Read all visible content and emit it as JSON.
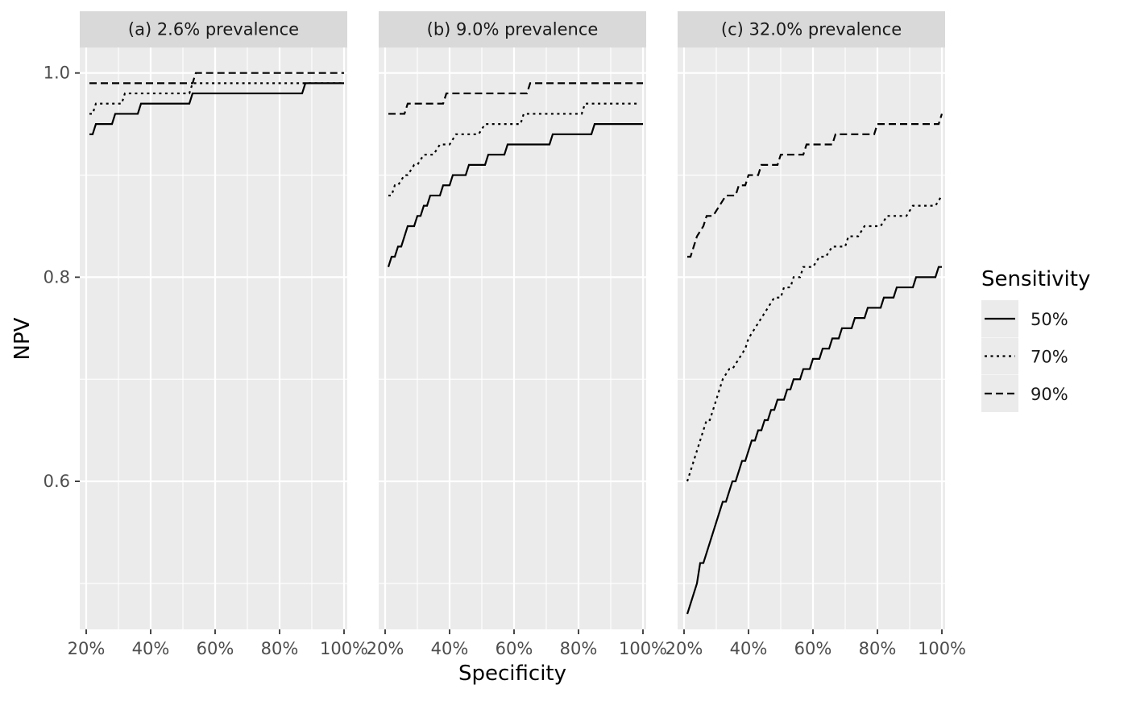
{
  "chart_data": {
    "type": "line",
    "ylabel": "NPV",
    "xlabel": "Specificity",
    "x_ticks": [
      20,
      40,
      60,
      80,
      100
    ],
    "x_tick_labels": [
      "20%",
      "40%",
      "60%",
      "80%",
      "100%"
    ],
    "y_ticks": [
      0.6,
      0.8,
      1.0
    ],
    "y_tick_labels": [
      "0.6",
      "0.8",
      "1.0"
    ],
    "xlim": [
      18,
      101
    ],
    "ylim": [
      0.455,
      1.025
    ],
    "grid": true,
    "legend": {
      "title": "Sensitivity",
      "position": "right",
      "entries": [
        {
          "label": "50%",
          "linetype": "solid"
        },
        {
          "label": "70%",
          "linetype": "dotted"
        },
        {
          "label": "90%",
          "linetype": "dashed"
        }
      ]
    },
    "colors": {
      "panel_background": "#ebebeb",
      "strip_background": "#d9d9d9",
      "gridline": "#ffffff",
      "line": "#000000",
      "tick_text": "#4d4d4d"
    },
    "panels": [
      {
        "strip": "(a) 2.6% prevalence",
        "series": [
          {
            "sensitivity": "50%",
            "linetype": "solid",
            "points": [
              [
                21,
                0.94
              ],
              [
                22,
                0.94
              ],
              [
                23,
                0.95
              ],
              [
                28,
                0.95
              ],
              [
                29,
                0.96
              ],
              [
                36,
                0.96
              ],
              [
                37,
                0.97
              ],
              [
                52,
                0.97
              ],
              [
                53,
                0.98
              ],
              [
                87,
                0.98
              ],
              [
                88,
                0.99
              ],
              [
                100,
                0.99
              ]
            ]
          },
          {
            "sensitivity": "70%",
            "linetype": "dotted",
            "points": [
              [
                21,
                0.96
              ],
              [
                22,
                0.96
              ],
              [
                23,
                0.97
              ],
              [
                31,
                0.97
              ],
              [
                32,
                0.98
              ],
              [
                52,
                0.98
              ],
              [
                53,
                0.99
              ],
              [
                100,
                0.99
              ]
            ]
          },
          {
            "sensitivity": "90%",
            "linetype": "dashed",
            "points": [
              [
                21,
                0.99
              ],
              [
                53,
                0.99
              ],
              [
                54,
                1.0
              ],
              [
                100,
                1.0
              ]
            ]
          }
        ]
      },
      {
        "strip": "(b) 9.0% prevalence",
        "series": [
          {
            "sensitivity": "50%",
            "linetype": "solid",
            "points": [
              [
                21,
                0.81
              ],
              [
                22,
                0.82
              ],
              [
                23,
                0.82
              ],
              [
                24,
                0.83
              ],
              [
                25,
                0.83
              ],
              [
                27,
                0.85
              ],
              [
                29,
                0.85
              ],
              [
                30,
                0.86
              ],
              [
                31,
                0.86
              ],
              [
                32,
                0.87
              ],
              [
                33,
                0.87
              ],
              [
                34,
                0.88
              ],
              [
                37,
                0.88
              ],
              [
                38,
                0.89
              ],
              [
                40,
                0.89
              ],
              [
                41,
                0.9
              ],
              [
                45,
                0.9
              ],
              [
                46,
                0.91
              ],
              [
                51,
                0.91
              ],
              [
                52,
                0.92
              ],
              [
                57,
                0.92
              ],
              [
                58,
                0.93
              ],
              [
                71,
                0.93
              ],
              [
                72,
                0.94
              ],
              [
                84,
                0.94
              ],
              [
                85,
                0.95
              ],
              [
                100,
                0.95
              ]
            ]
          },
          {
            "sensitivity": "70%",
            "linetype": "dotted",
            "points": [
              [
                21,
                0.88
              ],
              [
                22,
                0.88
              ],
              [
                23,
                0.89
              ],
              [
                24,
                0.89
              ],
              [
                26,
                0.9
              ],
              [
                27,
                0.9
              ],
              [
                29,
                0.91
              ],
              [
                30,
                0.91
              ],
              [
                32,
                0.92
              ],
              [
                35,
                0.92
              ],
              [
                37,
                0.93
              ],
              [
                40,
                0.93
              ],
              [
                42,
                0.94
              ],
              [
                49,
                0.94
              ],
              [
                51,
                0.95
              ],
              [
                62,
                0.95
              ],
              [
                63,
                0.96
              ],
              [
                81,
                0.96
              ],
              [
                82,
                0.97
              ],
              [
                99,
                0.97
              ]
            ]
          },
          {
            "sensitivity": "90%",
            "linetype": "dashed",
            "points": [
              [
                21,
                0.96
              ],
              [
                26,
                0.96
              ],
              [
                27,
                0.97
              ],
              [
                38,
                0.97
              ],
              [
                39,
                0.98
              ],
              [
                64,
                0.98
              ],
              [
                65,
                0.99
              ],
              [
                100,
                0.99
              ]
            ]
          }
        ]
      },
      {
        "strip": "(c) 32.0% prevalence",
        "series": [
          {
            "sensitivity": "50%",
            "linetype": "solid",
            "points": [
              [
                21,
                0.47
              ],
              [
                22,
                0.48
              ],
              [
                24,
                0.5
              ],
              [
                25,
                0.52
              ],
              [
                26,
                0.52
              ],
              [
                28,
                0.54
              ],
              [
                30,
                0.56
              ],
              [
                32,
                0.58
              ],
              [
                33,
                0.58
              ],
              [
                35,
                0.6
              ],
              [
                36,
                0.6
              ],
              [
                38,
                0.62
              ],
              [
                39,
                0.62
              ],
              [
                41,
                0.64
              ],
              [
                42,
                0.64
              ],
              [
                43,
                0.65
              ],
              [
                44,
                0.65
              ],
              [
                45,
                0.66
              ],
              [
                46,
                0.66
              ],
              [
                47,
                0.67
              ],
              [
                48,
                0.67
              ],
              [
                49,
                0.68
              ],
              [
                51,
                0.68
              ],
              [
                52,
                0.69
              ],
              [
                53,
                0.69
              ],
              [
                54,
                0.7
              ],
              [
                56,
                0.7
              ],
              [
                57,
                0.71
              ],
              [
                59,
                0.71
              ],
              [
                60,
                0.72
              ],
              [
                62,
                0.72
              ],
              [
                63,
                0.73
              ],
              [
                65,
                0.73
              ],
              [
                66,
                0.74
              ],
              [
                68,
                0.74
              ],
              [
                69,
                0.75
              ],
              [
                72,
                0.75
              ],
              [
                73,
                0.76
              ],
              [
                76,
                0.76
              ],
              [
                77,
                0.77
              ],
              [
                81,
                0.77
              ],
              [
                82,
                0.78
              ],
              [
                85,
                0.78
              ],
              [
                86,
                0.79
              ],
              [
                91,
                0.79
              ],
              [
                92,
                0.8
              ],
              [
                98,
                0.8
              ],
              [
                99,
                0.81
              ],
              [
                100,
                0.81
              ]
            ]
          },
          {
            "sensitivity": "70%",
            "linetype": "dotted",
            "points": [
              [
                21,
                0.6
              ],
              [
                23,
                0.62
              ],
              [
                25,
                0.64
              ],
              [
                27,
                0.66
              ],
              [
                28,
                0.66
              ],
              [
                30,
                0.68
              ],
              [
                32,
                0.7
              ],
              [
                34,
                0.71
              ],
              [
                35,
                0.71
              ],
              [
                37,
                0.72
              ],
              [
                39,
                0.73
              ],
              [
                40,
                0.74
              ],
              [
                42,
                0.75
              ],
              [
                44,
                0.76
              ],
              [
                46,
                0.77
              ],
              [
                48,
                0.78
              ],
              [
                50,
                0.78
              ],
              [
                51,
                0.79
              ],
              [
                53,
                0.79
              ],
              [
                54,
                0.8
              ],
              [
                56,
                0.8
              ],
              [
                57,
                0.81
              ],
              [
                60,
                0.81
              ],
              [
                62,
                0.82
              ],
              [
                64,
                0.82
              ],
              [
                66,
                0.83
              ],
              [
                70,
                0.83
              ],
              [
                71,
                0.84
              ],
              [
                74,
                0.84
              ],
              [
                76,
                0.85
              ],
              [
                81,
                0.85
              ],
              [
                83,
                0.86
              ],
              [
                89,
                0.86
              ],
              [
                91,
                0.87
              ],
              [
                98,
                0.87
              ],
              [
                100,
                0.88
              ]
            ]
          },
          {
            "sensitivity": "90%",
            "linetype": "dashed",
            "points": [
              [
                21,
                0.82
              ],
              [
                22,
                0.82
              ],
              [
                24,
                0.84
              ],
              [
                26,
                0.85
              ],
              [
                27,
                0.86
              ],
              [
                29,
                0.86
              ],
              [
                31,
                0.87
              ],
              [
                33,
                0.88
              ],
              [
                36,
                0.88
              ],
              [
                37,
                0.89
              ],
              [
                39,
                0.89
              ],
              [
                40,
                0.9
              ],
              [
                43,
                0.9
              ],
              [
                44,
                0.91
              ],
              [
                49,
                0.91
              ],
              [
                50,
                0.92
              ],
              [
                57,
                0.92
              ],
              [
                58,
                0.93
              ],
              [
                66,
                0.93
              ],
              [
                67,
                0.94
              ],
              [
                79,
                0.94
              ],
              [
                80,
                0.95
              ],
              [
                99,
                0.95
              ],
              [
                100,
                0.96
              ]
            ]
          }
        ]
      }
    ]
  }
}
